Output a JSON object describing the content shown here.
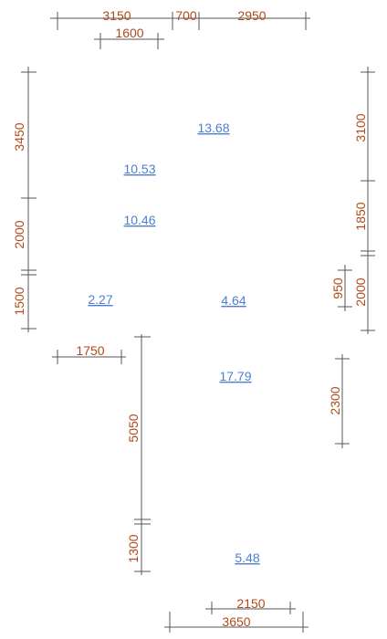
{
  "dimensions": {
    "top_3150": "3150",
    "top_700": "700",
    "top_2950": "2950",
    "top_1600": "1600",
    "left_3450": "3450",
    "left_2000": "2000",
    "left_1500": "1500",
    "left_1750": "1750",
    "mid_5050": "5050",
    "mid_1300": "1300",
    "right_3100": "3100",
    "right_1850": "1850",
    "right_2000": "2000",
    "right_950": "950",
    "right_2300": "2300",
    "bottom_2150": "2150",
    "bottom_3650": "3650"
  },
  "rooms": {
    "r1": "13.68",
    "r2": "10.53",
    "r3": "10.46",
    "r4": "2.27",
    "r5": "4.64",
    "r6": "17.79",
    "r7": "5.48"
  },
  "colors": {
    "dimension_text": "#b04a1a",
    "area_text": "#4f7fd0",
    "lines": "#555555"
  }
}
